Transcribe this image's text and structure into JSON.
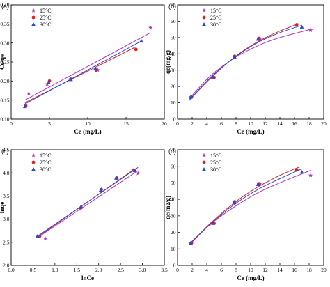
{
  "colors": {
    "s15": "#b030c8",
    "s25": "#e02020",
    "s30": "#2848d8"
  },
  "chart_data": [
    {
      "panel": "(a)",
      "type": "scatter",
      "xlabel": "Ce (mg/L)",
      "ylabel": "Ce/qe",
      "xlim": [
        0,
        20
      ],
      "ylim": [
        0.1,
        0.4
      ],
      "xticks": [
        0,
        5,
        10,
        15,
        20
      ],
      "yticks": [
        0.1,
        0.15,
        0.2,
        0.25,
        0.3,
        0.35,
        0.4
      ],
      "yticklabels": [
        "0.10",
        "0.15",
        "0.20",
        "0.25",
        "0.30",
        "0.35",
        "0.40"
      ],
      "series": [
        {
          "name": "15°C",
          "marker": "star",
          "color": "#b030c8",
          "x": [
            2.3,
            4.7,
            7.8,
            11.3,
            18.2
          ],
          "y": [
            0.167,
            0.192,
            0.205,
            0.229,
            0.34
          ],
          "fit": {
            "kind": "line",
            "x0": 1.8,
            "x1": 18.2,
            "y0": 0.15,
            "y1": 0.327
          }
        },
        {
          "name": "25°C",
          "marker": "circle",
          "color": "#e02020",
          "x": [
            1.9,
            5.0,
            7.8,
            11.1,
            16.3
          ],
          "y": [
            0.135,
            0.2,
            0.205,
            0.228,
            0.283
          ],
          "fit": {
            "kind": "line",
            "x0": 1.8,
            "x1": 16.3,
            "y0": 0.143,
            "y1": 0.29
          }
        },
        {
          "name": "30°C",
          "marker": "triangle",
          "color": "#2848d8",
          "x": [
            1.8,
            4.9,
            7.8,
            11.0,
            17.0
          ],
          "y": [
            0.133,
            0.196,
            0.204,
            0.233,
            0.305
          ],
          "fit": {
            "kind": "line",
            "x0": 1.8,
            "x1": 17.0,
            "y0": 0.14,
            "y1": 0.305
          }
        }
      ],
      "legend": {
        "position": "top-left",
        "entries": [
          "15°C",
          "25°C",
          "30°C"
        ]
      }
    },
    {
      "panel": "(b)",
      "type": "scatter",
      "xlabel": "Ce (mg/L)",
      "ylabel": "qe(mg/g)",
      "xlim": [
        0,
        20
      ],
      "ylim": [
        0,
        70
      ],
      "xticks": [
        0,
        2,
        4,
        6,
        8,
        10,
        12,
        14,
        16,
        18,
        20
      ],
      "yticks": [
        0,
        10,
        20,
        30,
        40,
        50,
        60,
        70
      ],
      "yticklabels": [
        "0",
        "10",
        "20",
        "30",
        "40",
        "50",
        "60",
        "70"
      ],
      "series": [
        {
          "name": "15°C",
          "marker": "star",
          "color": "#b030c8",
          "x": [
            1.8,
            4.7,
            7.8,
            11.3,
            18.2
          ],
          "y": [
            13.5,
            25.5,
            38.0,
            49.5,
            54.5
          ],
          "fit": {
            "kind": "curve",
            "x": [
              1.6,
              4.5,
              7.8,
              11.0,
              14.0,
              18.2
            ],
            "y": [
              12.5,
              26.5,
              37.5,
              45.0,
              50.0,
              55.0
            ]
          }
        },
        {
          "name": "25°C",
          "marker": "circle",
          "color": "#e02020",
          "x": [
            1.9,
            5.0,
            7.8,
            11.1,
            16.3
          ],
          "y": [
            13.5,
            25.5,
            38.5,
            49.5,
            57.8
          ],
          "fit": {
            "kind": "curve",
            "x": [
              1.6,
              4.5,
              7.8,
              11.0,
              14.0,
              16.6
            ],
            "y": [
              11.5,
              25.0,
              38.0,
              47.5,
              54.0,
              58.5
            ]
          }
        },
        {
          "name": "30°C",
          "marker": "triangle",
          "color": "#2848d8",
          "x": [
            1.8,
            4.9,
            7.8,
            11.0,
            17.0
          ],
          "y": [
            13.5,
            25.5,
            38.0,
            49.0,
            56.5
          ],
          "fit": {
            "kind": "curve",
            "x": [
              1.6,
              4.5,
              7.8,
              11.0,
              14.0,
              17.0
            ],
            "y": [
              11.5,
              25.5,
              37.8,
              47.0,
              53.0,
              57.5
            ]
          }
        }
      ],
      "legend": {
        "position": "top-left",
        "entries": [
          "15°C",
          "25°C",
          "30°C"
        ]
      }
    },
    {
      "panel": "(c)",
      "type": "scatter",
      "xlabel": "lnCe",
      "ylabel": "lnqe",
      "xlim": [
        0,
        3.5
      ],
      "ylim": [
        2.0,
        4.5
      ],
      "xticks": [
        0,
        0.5,
        1.0,
        1.5,
        2.0,
        2.5,
        3.0,
        3.5
      ],
      "xticklabels": [
        "0.0",
        "0.5",
        "1.0",
        "1.5",
        "2.0",
        "2.5",
        "3.0",
        "3.5"
      ],
      "yticks": [
        2.0,
        2.5,
        3.0,
        3.5,
        4.0,
        4.5
      ],
      "yticklabels": [
        "2.0",
        "2.5",
        "3.0",
        "3.5",
        "4.0",
        "4.5"
      ],
      "series": [
        {
          "name": "15°C",
          "marker": "star",
          "color": "#b030c8",
          "x": [
            0.78,
            1.58,
            2.06,
            2.43,
            2.9
          ],
          "y": [
            2.58,
            3.23,
            3.64,
            3.88,
            3.99
          ],
          "fit": {
            "kind": "line",
            "x0": 0.6,
            "x1": 2.9,
            "y0": 2.6,
            "y1": 4.05
          }
        },
        {
          "name": "25°C",
          "marker": "circle",
          "color": "#e02020",
          "x": [
            0.65,
            1.6,
            2.06,
            2.41,
            2.79
          ],
          "y": [
            2.63,
            3.25,
            3.64,
            3.89,
            4.06
          ],
          "fit": {
            "kind": "line",
            "x0": 0.6,
            "x1": 2.8,
            "y0": 2.61,
            "y1": 4.07
          }
        },
        {
          "name": "30°C",
          "marker": "triangle",
          "color": "#2848d8",
          "x": [
            0.6,
            1.59,
            2.05,
            2.4,
            2.83
          ],
          "y": [
            2.63,
            3.26,
            3.63,
            3.89,
            4.05
          ],
          "fit": {
            "kind": "line",
            "x0": 0.6,
            "x1": 2.9,
            "y0": 2.63,
            "y1": 4.12
          }
        }
      ],
      "legend": {
        "position": "top-left",
        "entries": [
          "15°C",
          "25°C",
          "30°C"
        ]
      }
    },
    {
      "panel": "(d)",
      "type": "scatter",
      "xlabel": "Ce (mg/L)",
      "ylabel": "qe(mg/g)",
      "xlim": [
        0,
        20
      ],
      "ylim": [
        0,
        70
      ],
      "xticks": [
        0,
        2,
        4,
        6,
        8,
        10,
        12,
        14,
        16,
        18,
        20
      ],
      "yticks": [
        0,
        10,
        20,
        30,
        40,
        50,
        60,
        70
      ],
      "yticklabels": [
        "0",
        "10",
        "20",
        "30",
        "40",
        "50",
        "60",
        "70"
      ],
      "series": [
        {
          "name": "15°C",
          "marker": "star",
          "color": "#b030c8",
          "x": [
            1.8,
            4.7,
            7.8,
            11.3,
            18.2
          ],
          "y": [
            13.5,
            25.5,
            38.0,
            49.5,
            54.5
          ],
          "fit": {
            "kind": "curve",
            "x": [
              1.6,
              4.5,
              7.8,
              11.0,
              14.0,
              18.2
            ],
            "y": [
              13.0,
              25.0,
              35.5,
              44.0,
              50.0,
              57.5
            ]
          }
        },
        {
          "name": "25°C",
          "marker": "circle",
          "color": "#e02020",
          "x": [
            1.9,
            5.0,
            7.8,
            11.1,
            16.3
          ],
          "y": [
            13.5,
            25.5,
            38.5,
            49.5,
            57.8
          ],
          "fit": {
            "kind": "curve",
            "x": [
              1.6,
              4.5,
              7.8,
              11.0,
              14.0,
              16.6
            ],
            "y": [
              12.5,
              25.5,
              38.0,
              47.5,
              54.5,
              59.5
            ]
          }
        },
        {
          "name": "30°C",
          "marker": "triangle",
          "color": "#2848d8",
          "x": [
            1.8,
            4.9,
            7.8,
            11.0,
            17.0
          ],
          "y": [
            13.5,
            25.5,
            38.0,
            49.0,
            56.5
          ],
          "fit": {
            "kind": "curve",
            "x": [
              1.6,
              4.5,
              7.8,
              11.0,
              14.0,
              17.0
            ],
            "y": [
              12.5,
              25.0,
              37.0,
              46.0,
              52.5,
              58.5
            ]
          }
        }
      ],
      "legend": {
        "position": "top-left",
        "entries": [
          "15°C",
          "25°C",
          "30°C"
        ]
      }
    }
  ]
}
